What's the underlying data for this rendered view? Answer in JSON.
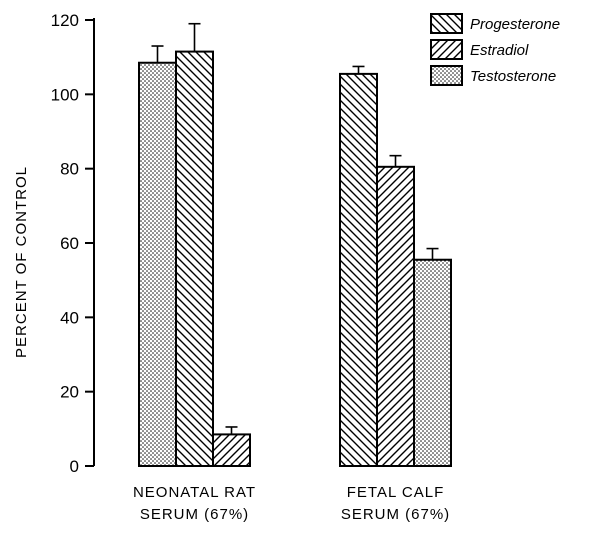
{
  "chart_data": {
    "type": "bar",
    "ylabel": "PERCENT OF CONTROL",
    "ylim": [
      0,
      120
    ],
    "yticks": [
      "0",
      "20",
      "40",
      "60",
      "80",
      "100",
      "120"
    ],
    "legend_position": "top-right",
    "series_styles": {
      "Progesterone": {
        "pattern": "backslash-hatch"
      },
      "Estradiol": {
        "pattern": "slash-hatch"
      },
      "Testosterone": {
        "pattern": "dots"
      }
    },
    "legend": [
      {
        "name": "Progesterone",
        "pattern": "backslash-hatch"
      },
      {
        "name": "Estradiol",
        "pattern": "slash-hatch"
      },
      {
        "name": "Testosterone",
        "pattern": "dots"
      }
    ],
    "groups": [
      {
        "label_lines": [
          "NEONATAL RAT",
          "SERUM (67%)"
        ],
        "bars": [
          {
            "series": "Testosterone",
            "value": 108.5,
            "error": 4.5
          },
          {
            "series": "Progesterone",
            "value": 111.5,
            "error": 7.5
          },
          {
            "series": "Estradiol",
            "value": 8.5,
            "error": 2
          }
        ]
      },
      {
        "label_lines": [
          "FETAL CALF",
          "SERUM (67%)"
        ],
        "bars": [
          {
            "series": "Progesterone",
            "value": 105.5,
            "error": 2
          },
          {
            "series": "Estradiol",
            "value": 80.5,
            "error": 3
          },
          {
            "series": "Testosterone",
            "value": 55.5,
            "error": 3
          }
        ]
      }
    ]
  }
}
